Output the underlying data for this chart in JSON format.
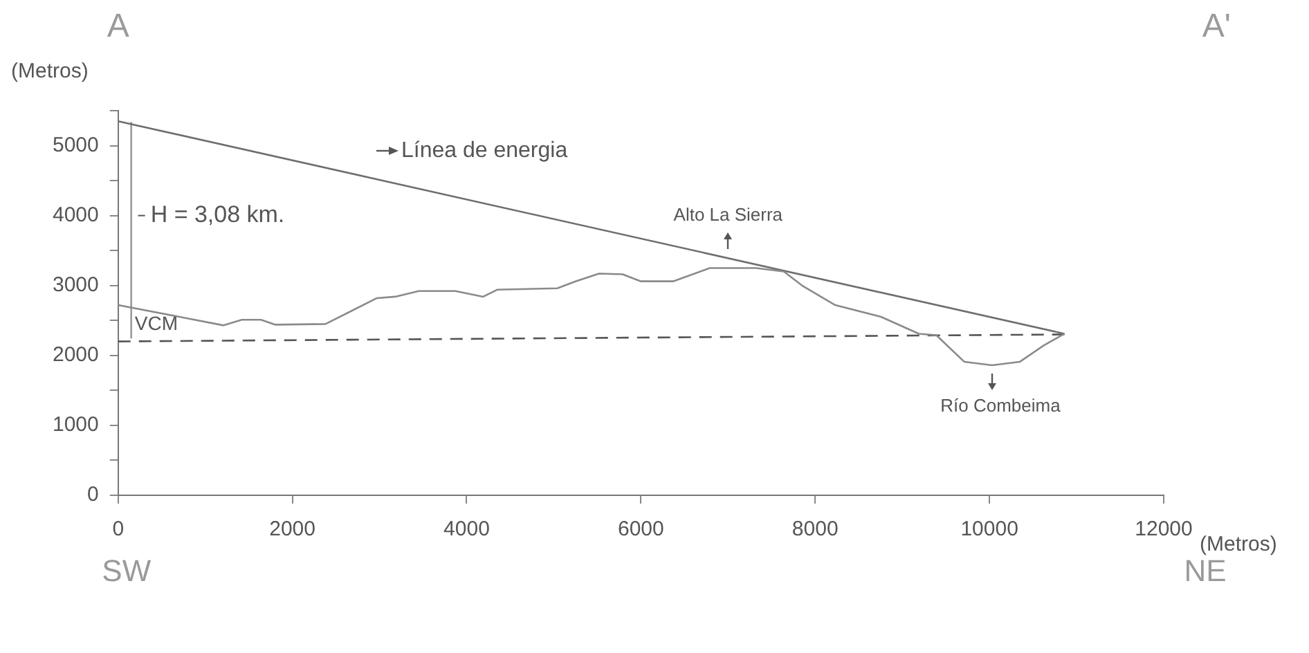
{
  "chart_data": {
    "type": "line",
    "ylabel": "(Metros)",
    "xlabel": "(Metros)",
    "x": [
      0,
      1210,
      1420,
      1640,
      1800,
      2380,
      2970,
      3180,
      3450,
      3870,
      4190,
      4350,
      5040,
      5250,
      5520,
      5790,
      6000,
      6370,
      6790,
      7320,
      7640,
      7860,
      8230,
      8760,
      9190,
      9390,
      9710,
      10030,
      10350,
      10620,
      10860
    ],
    "series": [
      {
        "color": "#8a8a8a",
        "values": [
          2720,
          2430,
          2510,
          2510,
          2440,
          2450,
          2820,
          2840,
          2920,
          2920,
          2840,
          2940,
          2960,
          3060,
          3170,
          3160,
          3060,
          3060,
          3250,
          3250,
          3200,
          2990,
          2720,
          2550,
          2310,
          2290,
          1910,
          1860,
          1910,
          2140,
          2310
        ]
      },
      {
        "name": "Línea de energia",
        "color": "#6e6e6e",
        "x": [
          0,
          10860
        ],
        "values": [
          5350,
          2310
        ]
      },
      {
        "color": "#555555",
        "x": [
          0,
          10860
        ],
        "values": [
          2200,
          2300
        ],
        "line_style": "dashed"
      },
      {
        "color": "#9a9a9a",
        "x": [
          150,
          150
        ],
        "values": [
          5330,
          2250
        ]
      }
    ],
    "annotations": [
      "A",
      "A'",
      "SW",
      "NE",
      {
        "text": "Alto La Sierra",
        "x": 7000,
        "y": 3250
      },
      {
        "text": "Río Combeima",
        "x": 10030,
        "y": 1860
      },
      {
        "text": "VCM",
        "x": 0,
        "y": 2200
      },
      {
        "text": "H = 3,08 km.",
        "x": 150,
        "y": 4000
      }
    ],
    "xlim": [
      0,
      12000
    ],
    "xticks": [
      0,
      2000,
      4000,
      6000,
      8000,
      10000,
      12000
    ],
    "ylim": [
      0,
      5500
    ],
    "yticks": [
      0,
      {
        "value": 500,
        "label": null
      },
      1000,
      {
        "value": 1500,
        "label": null
      },
      2000,
      {
        "value": 2500,
        "label": null
      },
      3000,
      {
        "value": 3500,
        "label": null
      },
      4000,
      {
        "value": 4500,
        "label": null
      },
      5000,
      {
        "value": 5500,
        "label": null
      }
    ],
    "grid": false,
    "legend": false,
    "marker": "none",
    "line_style": "solid"
  }
}
